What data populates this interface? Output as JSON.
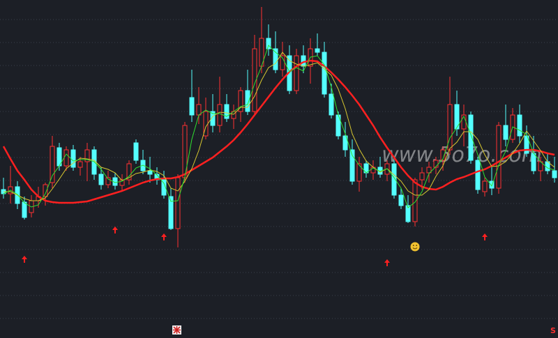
{
  "chart_data": {
    "type": "candlestick",
    "watermark": "www.5o7o.com",
    "marker_text": "S",
    "ylim": [
      0,
      485
    ],
    "up_color": "#ff3232",
    "down_color": "#54ffff",
    "ohlc": [
      [
        213,
        230,
        200,
        207
      ],
      [
        207,
        247,
        193,
        217
      ],
      [
        217,
        225,
        185,
        193
      ],
      [
        195,
        203,
        170,
        173
      ],
      [
        180,
        205,
        173,
        197
      ],
      [
        197,
        217,
        187,
        203
      ],
      [
        203,
        223,
        190,
        220
      ],
      [
        223,
        290,
        215,
        275
      ],
      [
        273,
        280,
        240,
        247
      ],
      [
        247,
        275,
        240,
        270
      ],
      [
        270,
        277,
        240,
        245
      ],
      [
        245,
        260,
        233,
        253
      ],
      [
        253,
        280,
        225,
        270
      ],
      [
        270,
        275,
        227,
        235
      ],
      [
        235,
        245,
        213,
        220
      ],
      [
        220,
        240,
        215,
        230
      ],
      [
        230,
        237,
        213,
        219
      ],
      [
        219,
        235,
        210,
        227
      ],
      [
        227,
        255,
        220,
        250
      ],
      [
        280,
        285,
        250,
        255
      ],
      [
        255,
        270,
        235,
        240
      ],
      [
        240,
        260,
        223,
        235
      ],
      [
        235,
        245,
        220,
        227
      ],
      [
        227,
        240,
        200,
        205
      ],
      [
        203,
        215,
        155,
        157
      ],
      [
        157,
        235,
        130,
        230
      ],
      [
        230,
        310,
        223,
        305
      ],
      [
        345,
        385,
        310,
        320
      ],
      [
        320,
        360,
        307,
        335
      ],
      [
        290,
        345,
        285,
        325
      ],
      [
        325,
        350,
        295,
        305
      ],
      [
        305,
        375,
        295,
        335
      ],
      [
        335,
        350,
        310,
        315
      ],
      [
        315,
        335,
        300,
        325
      ],
      [
        325,
        360,
        310,
        355
      ],
      [
        355,
        385,
        320,
        325
      ],
      [
        325,
        435,
        320,
        415
      ],
      [
        390,
        475,
        380,
        430
      ],
      [
        430,
        450,
        405,
        415
      ],
      [
        415,
        440,
        380,
        385
      ],
      [
        385,
        425,
        375,
        405
      ],
      [
        405,
        420,
        350,
        355
      ],
      [
        355,
        415,
        350,
        405
      ],
      [
        405,
        420,
        380,
        390
      ],
      [
        390,
        430,
        365,
        415
      ],
      [
        415,
        437,
        405,
        410
      ],
      [
        410,
        425,
        345,
        350
      ],
      [
        350,
        365,
        315,
        320
      ],
      [
        320,
        325,
        285,
        290
      ],
      [
        290,
        310,
        260,
        270
      ],
      [
        270,
        285,
        220,
        225
      ],
      [
        225,
        260,
        210,
        250
      ],
      [
        250,
        255,
        230,
        237
      ],
      [
        237,
        255,
        227,
        245
      ],
      [
        245,
        260,
        230,
        235
      ],
      [
        235,
        255,
        225,
        250
      ],
      [
        250,
        255,
        200,
        205
      ],
      [
        205,
        215,
        185,
        190
      ],
      [
        190,
        205,
        165,
        167
      ],
      [
        167,
        230,
        160,
        227
      ],
      [
        227,
        245,
        213,
        237
      ],
      [
        237,
        253,
        223,
        245
      ],
      [
        245,
        260,
        235,
        255
      ],
      [
        255,
        275,
        240,
        270
      ],
      [
        270,
        375,
        263,
        335
      ],
      [
        335,
        355,
        290,
        300
      ],
      [
        300,
        335,
        275,
        320
      ],
      [
        320,
        325,
        250,
        255
      ],
      [
        255,
        260,
        207,
        213
      ],
      [
        210,
        230,
        203,
        225
      ],
      [
        225,
        245,
        205,
        215
      ],
      [
        215,
        310,
        207,
        305
      ],
      [
        305,
        335,
        275,
        285
      ],
      [
        285,
        330,
        280,
        320
      ],
      [
        320,
        335,
        280,
        290
      ],
      [
        290,
        305,
        260,
        265
      ],
      [
        265,
        290,
        235,
        240
      ],
      [
        240,
        260,
        225,
        253
      ],
      [
        253,
        265,
        235,
        240
      ],
      [
        240,
        260,
        223,
        230
      ]
    ],
    "moving_averages": [
      {
        "color": "#ff2020",
        "width": 2.5,
        "values": [
          275,
          257,
          240,
          227,
          213,
          203,
          197,
          195,
          194,
          194,
          194,
          195,
          196,
          199,
          202,
          205,
          208,
          211,
          215,
          219,
          223,
          226,
          228,
          229,
          229,
          231,
          235,
          241,
          247,
          253,
          259,
          267,
          275,
          284,
          295,
          307,
          320,
          333,
          346,
          359,
          371,
          382,
          390,
          396,
          398,
          397,
          390,
          381,
          371,
          360,
          348,
          335,
          320,
          305,
          288,
          273,
          259,
          245,
          233,
          223,
          217,
          214,
          213,
          217,
          223,
          228,
          231,
          235,
          239,
          242,
          247,
          253,
          259,
          265,
          269,
          270,
          270,
          268,
          265,
          263
        ]
      },
      {
        "color": "#d8c830",
        "width": 1,
        "values": [
          210,
          210,
          205,
          200,
          197,
          197,
          201,
          214,
          228,
          243,
          251,
          258,
          257,
          255,
          245,
          242,
          237,
          226,
          230,
          236,
          238,
          241,
          239,
          233,
          215,
          211,
          225,
          243,
          269,
          303,
          318,
          324,
          323,
          321,
          331,
          331,
          347,
          370,
          388,
          394,
          410,
          398,
          393,
          390,
          392,
          395,
          386,
          377,
          357,
          329,
          293,
          271,
          254,
          245,
          238,
          243,
          234,
          225,
          211,
          205,
          205,
          213,
          232,
          247,
          272,
          281,
          296,
          296,
          285,
          263,
          246,
          247,
          253,
          265,
          279,
          297,
          283,
          269,
          253,
          245
        ]
      },
      {
        "color": "#30e030",
        "width": 1,
        "values": [
          207,
          212,
          206,
          194,
          188,
          191,
          207,
          233,
          247,
          264,
          254,
          256,
          256,
          253,
          242,
          228,
          223,
          225,
          232,
          244,
          248,
          243,
          234,
          222,
          196,
          197,
          231,
          285,
          320,
          327,
          322,
          322,
          318,
          325,
          332,
          335,
          365,
          390,
          420,
          410,
          402,
          382,
          388,
          383,
          403,
          405,
          392,
          360,
          320,
          293,
          262,
          248,
          237,
          244,
          239,
          243,
          230,
          215,
          187,
          195,
          210,
          236,
          246,
          257,
          287,
          302,
          318,
          292,
          263,
          231,
          218,
          248,
          268,
          303,
          298,
          292,
          265,
          253,
          244,
          241
        ]
      }
    ],
    "buy_signals": [
      {
        "index": 3,
        "value": 118
      },
      {
        "index": 16,
        "value": 160
      },
      {
        "index": 23,
        "value": 150
      },
      {
        "index": 55,
        "value": 113
      },
      {
        "index": 69,
        "value": 150
      }
    ],
    "signal_color": "#ff2020",
    "smiley": {
      "index": 59,
      "value": 131
    }
  }
}
